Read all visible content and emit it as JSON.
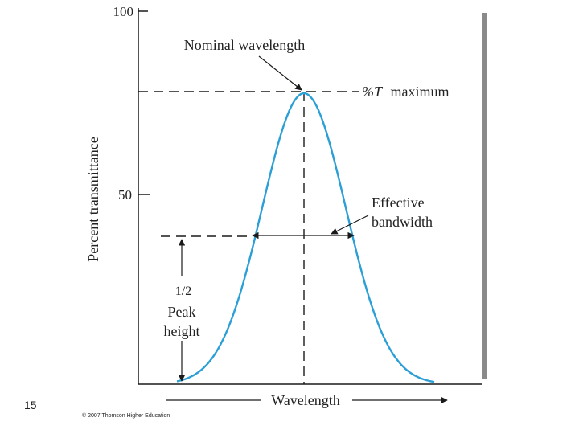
{
  "figure": {
    "y_axis_label": "Percent transmittance",
    "y_ticks": [
      {
        "value": 100,
        "label": "100"
      },
      {
        "value": 50,
        "label": "50"
      }
    ],
    "x_axis_label": "Wavelength",
    "annotations": {
      "nominal_wavelength": "Nominal wavelength",
      "percent_t": "%T",
      "maximum": "maximum",
      "effective_line1": "Effective",
      "effective_line2": "bandwidth",
      "half_fraction": "1/2",
      "half_line1": "Peak",
      "half_line2": "height"
    },
    "colors": {
      "curve": "#2c9fd6",
      "panel": "#ffffff",
      "shadow": "#8a8a8a",
      "ink": "#1a1a1a"
    }
  },
  "chart_data": {
    "type": "line",
    "title": "",
    "xlabel": "Wavelength",
    "ylabel": "Percent transmittance",
    "ylim": [
      0,
      100
    ],
    "curve": {
      "shape": "gaussian band-pass",
      "peak_value": 78,
      "half_height_value": 39
    },
    "annotations": [
      "Nominal wavelength",
      "%T maximum",
      "Effective bandwidth",
      "1/2 Peak height"
    ]
  },
  "slide": {
    "page_number": "15",
    "copyright": "© 2007 Thomson Higher Education"
  }
}
